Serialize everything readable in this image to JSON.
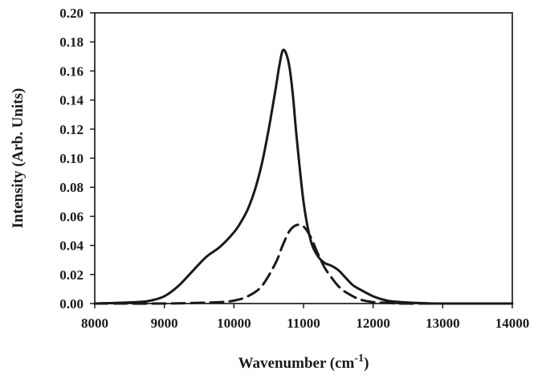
{
  "chart_data": {
    "type": "line",
    "title": "",
    "xlabel": "Wavenumber (cm",
    "xlabel_sup": "-1",
    "xlabel_close": ")",
    "ylabel": "Intensity (Arb. Units)",
    "xlim": [
      8000,
      14000
    ],
    "ylim": [
      0,
      0.2
    ],
    "xticks": [
      8000,
      9000,
      10000,
      11000,
      12000,
      13000,
      14000
    ],
    "xtick_labels": [
      "8000",
      "9000",
      "10000",
      "11000",
      "12000",
      "13000",
      "14000"
    ],
    "yticks": [
      0,
      0.02,
      0.04,
      0.06,
      0.08,
      0.1,
      0.12,
      0.14,
      0.16,
      0.18,
      0.2
    ],
    "ytick_labels": [
      "0.00",
      "0.02",
      "0.04",
      "0.06",
      "0.08",
      "0.10",
      "0.12",
      "0.14",
      "0.16",
      "0.18",
      "0.20"
    ],
    "grid": false,
    "legend": "none",
    "series": [
      {
        "style": "solid",
        "color": "#1a1a1a",
        "x": [
          8000,
          8600,
          8800,
          9000,
          9200,
          9400,
          9600,
          9800,
          10000,
          10100,
          10200,
          10300,
          10400,
          10500,
          10600,
          10650,
          10700,
          10750,
          10800,
          10850,
          10900,
          11000,
          11100,
          11200,
          11300,
          11400,
          11500,
          11600,
          11700,
          11800,
          12000,
          12200,
          12400,
          12600,
          13000,
          14000
        ],
        "y": [
          0,
          0.001,
          0.002,
          0.005,
          0.012,
          0.022,
          0.032,
          0.039,
          0.049,
          0.056,
          0.065,
          0.078,
          0.096,
          0.12,
          0.148,
          0.163,
          0.174,
          0.172,
          0.162,
          0.142,
          0.115,
          0.07,
          0.044,
          0.033,
          0.028,
          0.026,
          0.023,
          0.018,
          0.013,
          0.01,
          0.005,
          0.002,
          0.001,
          0.0005,
          0,
          0
        ]
      },
      {
        "style": "dashed",
        "color": "#1a1a1a",
        "x": [
          8000,
          9000,
          9500,
          9800,
          10000,
          10200,
          10400,
          10600,
          10700,
          10800,
          10900,
          11000,
          11100,
          11200,
          11300,
          11400,
          11500,
          11600,
          11800,
          12000,
          12200,
          12400,
          13000,
          14000
        ],
        "y": [
          0,
          0,
          0.0005,
          0.001,
          0.002,
          0.005,
          0.012,
          0.028,
          0.04,
          0.05,
          0.054,
          0.053,
          0.046,
          0.035,
          0.025,
          0.018,
          0.012,
          0.008,
          0.003,
          0.001,
          0.0005,
          0,
          0,
          0
        ]
      }
    ]
  }
}
